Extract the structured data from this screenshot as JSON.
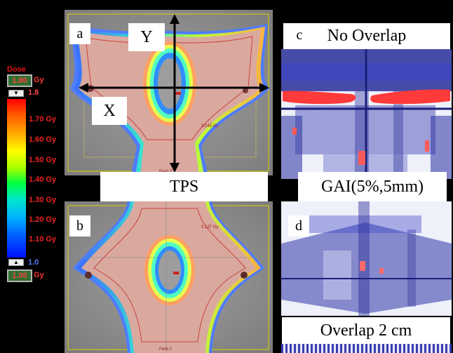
{
  "legend": {
    "title": "Dose",
    "max_value": "1.80",
    "max_unit": "Gy",
    "max_slider": "1.8",
    "ticks": [
      "1.70 Gy",
      "1.60 Gy",
      "1.50 Gy",
      "1.40 Gy",
      "1.30 Gy",
      "1.20 Gy",
      "1.10 Gy"
    ],
    "min_slider": "1.0",
    "min_value": "1.00",
    "min_unit": "Gy"
  },
  "panels": {
    "a": {
      "letter": "a",
      "axis_y": "Y",
      "axis_x": "X",
      "dose_mark": "3.145 Gy",
      "field_mark": "Field 2"
    },
    "b": {
      "letter": "b",
      "dose_mark": "3.137 Gy",
      "field_mark": "Field 2"
    },
    "c": {
      "letter": "c",
      "caption": "No Overlap"
    },
    "d": {
      "letter": "d",
      "caption": "Overlap 2 cm"
    }
  },
  "labels": {
    "left": "TPS",
    "right": "GAI(5%,5mm)"
  }
}
